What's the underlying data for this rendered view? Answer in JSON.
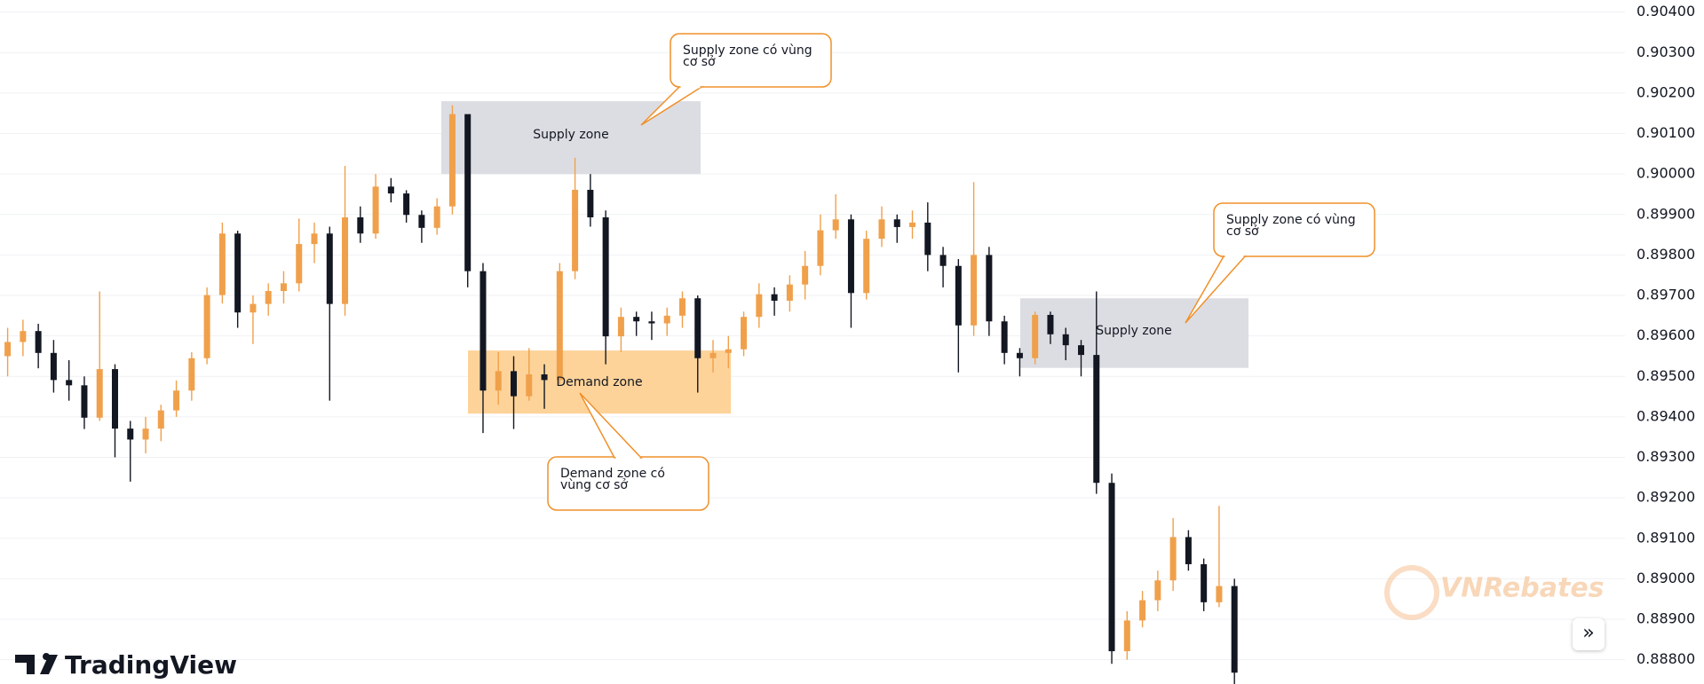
{
  "chart_data": {
    "type": "candlestick",
    "up_color": "#f0a04b",
    "down_color": "#131722",
    "ylim": [
      0.8874,
      0.9043
    ],
    "yticks": [
      {
        "value": 0.904,
        "label": "0.90400"
      },
      {
        "value": 0.903,
        "label": "0.90300"
      },
      {
        "value": 0.902,
        "label": "0.90200"
      },
      {
        "value": 0.901,
        "label": "0.90100"
      },
      {
        "value": 0.9,
        "label": "0.90000"
      },
      {
        "value": 0.899,
        "label": "0.89900"
      },
      {
        "value": 0.898,
        "label": "0.89800"
      },
      {
        "value": 0.897,
        "label": "0.89700"
      },
      {
        "value": 0.896,
        "label": "0.89600"
      },
      {
        "value": 0.895,
        "label": "0.89500"
      },
      {
        "value": 0.894,
        "label": "0.89400"
      },
      {
        "value": 0.893,
        "label": "0.89300"
      },
      {
        "value": 0.892,
        "label": "0.89200"
      },
      {
        "value": 0.891,
        "label": "0.89100"
      },
      {
        "value": 0.89,
        "label": "0.89000"
      },
      {
        "value": 0.889,
        "label": "0.88900"
      },
      {
        "value": 0.888,
        "label": "0.88800"
      }
    ],
    "grid": true,
    "open": [
      0.8955,
      0.89585,
      0.89612,
      0.89558,
      0.89491,
      0.89478,
      0.89398,
      0.89518,
      0.89371,
      0.89344,
      0.89371,
      0.89416,
      0.89465,
      0.89545,
      0.89701,
      0.89853,
      0.89658,
      0.89679,
      0.89711,
      0.8973,
      0.89827,
      0.89853,
      0.89679,
      0.89893,
      0.89853,
      0.89969,
      0.89952,
      0.89899,
      0.89867,
      0.8992,
      0.90148,
      0.8976,
      0.89465,
      0.89513,
      0.89451,
      0.89505,
      0.89491,
      0.8976,
      0.89961,
      0.89893,
      0.89599,
      0.89647,
      0.89636,
      0.89631,
      0.8965,
      0.89693,
      0.89545,
      0.89558,
      0.89567,
      0.89647,
      0.89703,
      0.89687,
      0.89727,
      0.89773,
      0.89861,
      0.89888,
      0.89706,
      0.8984,
      0.89888,
      0.89869,
      0.8988,
      0.898,
      0.89773,
      0.89626,
      0.898,
      0.89636,
      0.89558,
      0.89545,
      0.89652,
      0.89604,
      0.89577,
      0.89553,
      0.89237,
      0.88821,
      0.88897,
      0.88947,
      0.88996,
      0.89103,
      0.89036,
      0.88942,
      0.88982
    ],
    "high": [
      0.8962,
      0.8964,
      0.8963,
      0.8959,
      0.8954,
      0.895,
      0.8971,
      0.8953,
      0.8939,
      0.894,
      0.8943,
      0.8949,
      0.8956,
      0.8972,
      0.8988,
      0.8986,
      0.897,
      0.8973,
      0.8976,
      0.8989,
      0.8988,
      0.8987,
      0.9002,
      0.8992,
      0.9,
      0.8999,
      0.8996,
      0.8991,
      0.8994,
      0.9017,
      0.9014,
      0.8978,
      0.8956,
      0.8955,
      0.8957,
      0.8953,
      0.8978,
      0.9004,
      0.9,
      0.8991,
      0.8967,
      0.8966,
      0.8966,
      0.8967,
      0.8971,
      0.897,
      0.8959,
      0.896,
      0.8966,
      0.8973,
      0.8972,
      0.8975,
      0.8981,
      0.899,
      0.8995,
      0.899,
      0.8986,
      0.8992,
      0.899,
      0.8991,
      0.8993,
      0.8982,
      0.8979,
      0.8998,
      0.8982,
      0.8965,
      0.8957,
      0.8966,
      0.8966,
      0.8962,
      0.8959,
      0.8971,
      0.8926,
      0.8892,
      0.8897,
      0.8902,
      0.8915,
      0.8912,
      0.8905,
      0.8918,
      0.89
    ],
    "low": [
      0.895,
      0.8955,
      0.8952,
      0.8946,
      0.8944,
      0.8937,
      0.8939,
      0.893,
      0.8924,
      0.8931,
      0.8934,
      0.894,
      0.8944,
      0.8953,
      0.8968,
      0.8962,
      0.8958,
      0.8965,
      0.8968,
      0.8971,
      0.8978,
      0.8944,
      0.8965,
      0.8983,
      0.8984,
      0.8993,
      0.8988,
      0.8983,
      0.8985,
      0.899,
      0.8972,
      0.8936,
      0.8943,
      0.8937,
      0.8944,
      0.8942,
      0.8948,
      0.8974,
      0.8987,
      0.8953,
      0.8956,
      0.896,
      0.8959,
      0.896,
      0.8962,
      0.8946,
      0.8951,
      0.8952,
      0.8955,
      0.8962,
      0.8965,
      0.8966,
      0.8969,
      0.8975,
      0.8984,
      0.8962,
      0.8969,
      0.8982,
      0.8983,
      0.8984,
      0.8976,
      0.8972,
      0.8951,
      0.896,
      0.896,
      0.8953,
      0.895,
      0.8953,
      0.8958,
      0.8954,
      0.895,
      0.8921,
      0.8879,
      0.888,
      0.8888,
      0.8892,
      0.8897,
      0.8902,
      0.8892,
      0.8893,
      0.8874
    ],
    "close": [
      0.89585,
      0.89612,
      0.89558,
      0.89491,
      0.89478,
      0.89398,
      0.89518,
      0.89371,
      0.89344,
      0.89371,
      0.89416,
      0.89465,
      0.89545,
      0.89701,
      0.89853,
      0.89658,
      0.89679,
      0.89711,
      0.8973,
      0.89827,
      0.89853,
      0.89679,
      0.89893,
      0.89853,
      0.89969,
      0.89952,
      0.89899,
      0.89867,
      0.8992,
      0.90148,
      0.8976,
      0.89465,
      0.89513,
      0.89451,
      0.89505,
      0.89491,
      0.8976,
      0.89961,
      0.89893,
      0.89599,
      0.89647,
      0.89636,
      0.89631,
      0.8965,
      0.89693,
      0.89545,
      0.89558,
      0.89567,
      0.89647,
      0.89703,
      0.89687,
      0.89727,
      0.89773,
      0.89861,
      0.89888,
      0.89706,
      0.8984,
      0.89888,
      0.89869,
      0.8988,
      0.898,
      0.89773,
      0.89626,
      0.898,
      0.89636,
      0.89558,
      0.89545,
      0.89652,
      0.89604,
      0.89577,
      0.89553,
      0.89237,
      0.88821,
      0.88897,
      0.88947,
      0.88996,
      0.89103,
      0.89036,
      0.88942,
      0.88982,
      0.88768
    ],
    "zones": [
      {
        "label": "Supply zone",
        "top": 0.9018,
        "bottom": 0.9,
        "color": "#dcdde2"
      },
      {
        "label": "Demand zone",
        "top": 0.89564,
        "bottom": 0.89408,
        "color": "#fdd399"
      },
      {
        "label": "Supply zone",
        "top": 0.89693,
        "bottom": 0.89521,
        "color": "#dcdde2"
      }
    ],
    "callouts": [
      "Supply zone có vùng cơ sở",
      "Supply zone có vùng cơ sở",
      "Demand zone có vùng cơ sở"
    ],
    "callout_color": "#f0902a",
    "logo": "TradingView",
    "watermark": "VNRebates"
  }
}
